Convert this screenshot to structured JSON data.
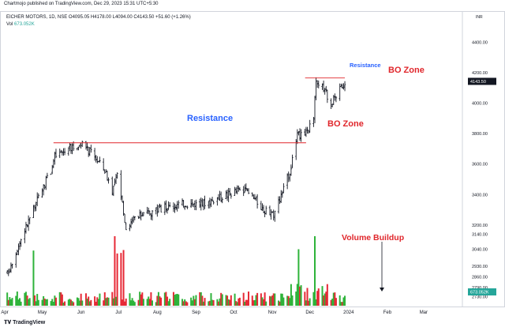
{
  "header": {
    "publisher_line": "Chartmojo published on TradingView.com, Dec 29, 2023 15:31 UTC+5:30",
    "symbol_line": "EICHER MOTORS, 1D, NSE",
    "ohlc": "O4095.05 H4178.00 L4094.00 C4143.50 +51.60 (+1.26%)",
    "vol_label": "Vol",
    "vol_value": "673.052K",
    "currency": "INR"
  },
  "branding": {
    "logo_text": "TradingView"
  },
  "colors": {
    "up": "#26a69a",
    "down": "#ef5350",
    "vol_up": "#2eb33a",
    "vol_down": "#e62936",
    "price_bar": "#131722",
    "annotation_red": "#e0262b",
    "annotation_blue": "#2962ff",
    "last_price_tag": "#131722",
    "vol_tag": "#26a69a"
  },
  "chart_data": {
    "type": "ohlc",
    "timeframe": "1D",
    "x_axis": {
      "tick_labels": [
        "Apr",
        "May",
        "Jun",
        "Jul",
        "Aug",
        "Sep",
        "Oct",
        "Nov",
        "Dec",
        "2024",
        "Feb",
        "Mar"
      ]
    },
    "y_axis": {
      "tick_labels": [
        "4400.00",
        "4200.00",
        "4000.00",
        "3800.00",
        "3600.00",
        "3400.00",
        "3200.00",
        "3140.00",
        "3040.00",
        "2930.00",
        "2860.00",
        "2790.00",
        "2730.00"
      ],
      "last_price": "4143.50",
      "last_volume": "673.052K"
    },
    "price_keypoints": [
      [
        "2023-04-03",
        2880
      ],
      [
        "2023-04-15",
        3130
      ],
      [
        "2023-04-28",
        3380
      ],
      [
        "2023-05-08",
        3560
      ],
      [
        "2023-05-11",
        3650
      ],
      [
        "2023-05-22",
        3700
      ],
      [
        "2023-06-01",
        3730
      ],
      [
        "2023-06-10",
        3670
      ],
      [
        "2023-06-20",
        3560
      ],
      [
        "2023-06-26",
        3430
      ],
      [
        "2023-06-30",
        3520
      ],
      [
        "2023-07-05",
        3300
      ],
      [
        "2023-07-07",
        3180
      ],
      [
        "2023-07-15",
        3250
      ],
      [
        "2023-08-01",
        3300
      ],
      [
        "2023-08-20",
        3340
      ],
      [
        "2023-09-05",
        3340
      ],
      [
        "2023-09-20",
        3380
      ],
      [
        "2023-10-05",
        3430
      ],
      [
        "2023-10-15",
        3400
      ],
      [
        "2023-10-25",
        3300
      ],
      [
        "2023-11-01",
        3260
      ],
      [
        "2023-11-08",
        3390
      ],
      [
        "2023-11-15",
        3550
      ],
      [
        "2023-11-21",
        3780
      ],
      [
        "2023-11-28",
        3820
      ],
      [
        "2023-12-04",
        3880
      ],
      [
        "2023-12-06",
        4150
      ],
      [
        "2023-12-12",
        4100
      ],
      [
        "2023-12-18",
        4000
      ],
      [
        "2023-12-22",
        4050
      ],
      [
        "2023-12-29",
        4143.5
      ]
    ],
    "volume_highlights": [
      [
        "2023-04-24",
        "up",
        "high"
      ],
      [
        "2023-06-28",
        "down",
        "spike"
      ],
      [
        "2023-06-30",
        "down",
        "high"
      ],
      [
        "2023-07-03",
        "down",
        "high"
      ],
      [
        "2023-07-05",
        "down",
        "high"
      ],
      [
        "2023-11-22",
        "up",
        "high"
      ],
      [
        "2023-12-05",
        "up",
        "spike"
      ]
    ],
    "annotations": [
      {
        "type": "hline",
        "price": 3740,
        "from": "2023-05-10",
        "to": "2023-11-28",
        "label": "Resistance",
        "color": "blue"
      },
      {
        "type": "text",
        "label": "BO Zone",
        "near": "2023-11-28",
        "color": "red"
      },
      {
        "type": "hline",
        "price": 4150,
        "from": "2023-12-01",
        "to": "2023-12-29",
        "label": "Resistance",
        "color": "blue"
      },
      {
        "type": "text",
        "label": "BO Zone",
        "near": "2023-12-29",
        "color": "red"
      },
      {
        "type": "text",
        "label": "Volume Buildup",
        "near": "2023-12-28",
        "color": "red",
        "arrow_to": "2023-12-29"
      }
    ]
  }
}
